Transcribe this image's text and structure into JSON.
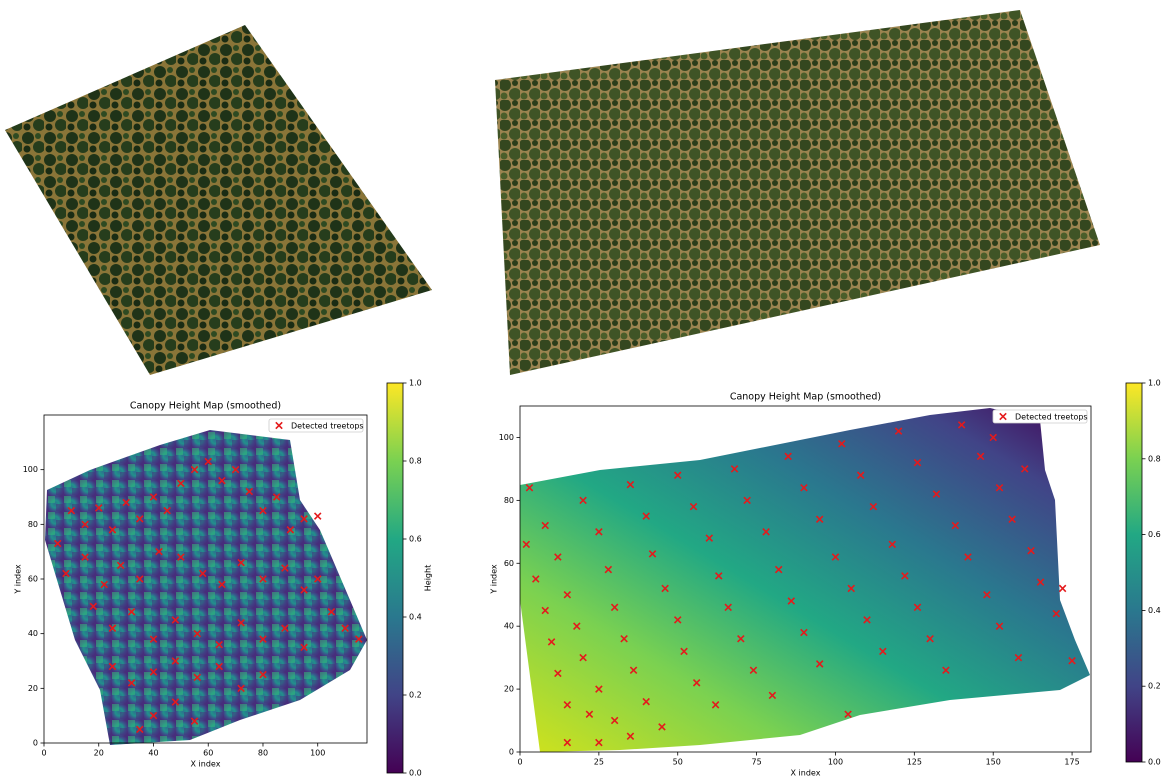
{
  "chart_data": [
    {
      "type": "scatter",
      "title": "Canopy Height Map (smoothed)",
      "x_label": "X index",
      "y_label": "Y index",
      "xlim": [
        0,
        118
      ],
      "ylim": [
        0,
        120
      ],
      "xticks": [
        0,
        20,
        40,
        60,
        80,
        100
      ],
      "yticks": [
        0,
        20,
        40,
        60,
        80,
        100
      ],
      "legend": "upper right",
      "series": [
        {
          "name": "Detected treetops",
          "color": "#e41a1c",
          "x": [
            5,
            10,
            15,
            20,
            25,
            30,
            35,
            40,
            45,
            50,
            55,
            60,
            65,
            70,
            75,
            80,
            85,
            90,
            95,
            100,
            8,
            15,
            22,
            28,
            35,
            42,
            50,
            58,
            65,
            72,
            80,
            88,
            95,
            100,
            105,
            110,
            115,
            18,
            25,
            32,
            40,
            48,
            56,
            64,
            72,
            80,
            88,
            95,
            25,
            32,
            40,
            48,
            56,
            64,
            72,
            80,
            40,
            48,
            35,
            55
          ],
          "values": [
            73,
            85,
            80,
            86,
            78,
            88,
            82,
            90,
            85,
            95,
            100,
            103,
            96,
            100,
            92,
            85,
            90,
            78,
            82,
            83,
            62,
            68,
            58,
            65,
            60,
            70,
            68,
            62,
            58,
            66,
            60,
            64,
            56,
            60,
            48,
            42,
            38,
            50,
            42,
            48,
            38,
            45,
            40,
            36,
            44,
            38,
            42,
            35,
            28,
            22,
            26,
            30,
            24,
            28,
            20,
            25,
            10,
            15,
            5,
            8
          ]
        }
      ],
      "colorbar": {
        "label": "Height",
        "lim": [
          0,
          1
        ],
        "ticks": [
          {
            "value": 0,
            "label": "0.0"
          },
          {
            "value": 0.2,
            "label": "0.2"
          },
          {
            "value": 0.4,
            "label": "0.4"
          },
          {
            "value": 0.6,
            "label": "0.6"
          },
          {
            "value": 0.8,
            "label": "0.8"
          },
          {
            "value": 1,
            "label": "1.0"
          }
        ]
      }
    },
    {
      "type": "scatter",
      "title": "Canopy Height Map (smoothed)",
      "x_label": "X index",
      "y_label": "Y index",
      "xlim": [
        0,
        181
      ],
      "ylim": [
        0,
        110
      ],
      "xticks": [
        0,
        25,
        50,
        75,
        100,
        125,
        150,
        175
      ],
      "yticks": [
        0,
        20,
        40,
        60,
        80,
        100
      ],
      "legend": "upper right",
      "series": [
        {
          "name": "Detected treetops",
          "color": "#e41a1c",
          "x": [
            3,
            2,
            5,
            8,
            10,
            12,
            15,
            15,
            25,
            22,
            8,
            12,
            15,
            18,
            20,
            25,
            30,
            35,
            20,
            25,
            28,
            30,
            33,
            36,
            40,
            45,
            35,
            40,
            42,
            46,
            50,
            52,
            56,
            62,
            50,
            55,
            60,
            63,
            66,
            70,
            74,
            80,
            68,
            72,
            78,
            82,
            86,
            90,
            95,
            104,
            85,
            90,
            95,
            100,
            105,
            110,
            115,
            102,
            108,
            112,
            118,
            122,
            126,
            130,
            135,
            120,
            126,
            132,
            138,
            142,
            148,
            152,
            158,
            140,
            146,
            152,
            156,
            162,
            165,
            170,
            175,
            172,
            150,
            160
          ],
          "values": [
            84,
            66,
            55,
            45,
            35,
            25,
            15,
            3,
            3,
            12,
            72,
            62,
            50,
            40,
            30,
            20,
            10,
            5,
            80,
            70,
            58,
            46,
            36,
            26,
            16,
            8,
            85,
            75,
            63,
            52,
            42,
            32,
            22,
            15,
            88,
            78,
            68,
            56,
            46,
            36,
            26,
            18,
            90,
            80,
            70,
            58,
            48,
            38,
            28,
            12,
            94,
            84,
            74,
            62,
            52,
            42,
            32,
            98,
            88,
            78,
            66,
            56,
            46,
            36,
            26,
            102,
            92,
            82,
            72,
            62,
            50,
            40,
            30,
            104,
            94,
            84,
            74,
            64,
            54,
            44,
            29,
            52,
            100,
            90
          ]
        }
      ],
      "colorbar": {
        "lim": [
          0,
          1
        ],
        "ticks": [
          {
            "value": 0,
            "label": "0.0"
          },
          {
            "value": 0.2,
            "label": "0.2"
          },
          {
            "value": 0.4,
            "label": "0.4"
          },
          {
            "value": 0.6,
            "label": "0.6"
          },
          {
            "value": 0.8,
            "label": "0.8"
          },
          {
            "value": 1,
            "label": "1.0"
          }
        ]
      }
    }
  ]
}
